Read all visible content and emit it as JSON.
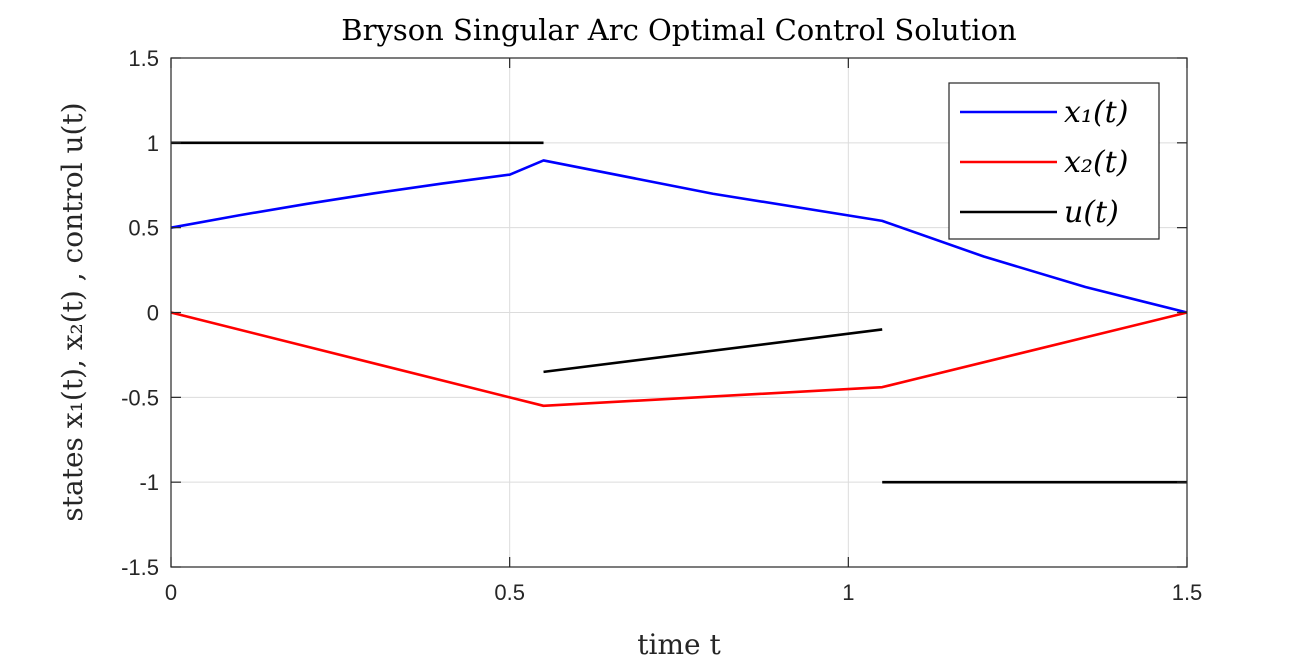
{
  "chart_data": {
    "type": "line",
    "title": "Bryson Singular Arc Optimal Control Solution",
    "xlabel": "time t",
    "ylabel": "states x₁(t), x₂(t) , control u(t)",
    "xlim": [
      0,
      1.5
    ],
    "ylim": [
      -1.5,
      1.5
    ],
    "xticks": [
      0,
      0.5,
      1,
      1.5
    ],
    "xtick_labels": [
      "0",
      "0.5",
      "1",
      "1.5"
    ],
    "yticks": [
      1.5,
      1,
      0.5,
      0,
      -0.5,
      -1,
      -1.5
    ],
    "ytick_labels": [
      "1.5",
      "1",
      "0.5",
      "0",
      "-0.5",
      "-1",
      "-1.5"
    ],
    "grid": true,
    "legend_position": "top-right",
    "series": [
      {
        "name": "x₁(t)",
        "color": "#0000ff",
        "segments": [
          [
            [
              0,
              0.5
            ],
            [
              0.1,
              0.5725
            ],
            [
              0.2,
              0.64
            ],
            [
              0.3,
              0.7025
            ],
            [
              0.4,
              0.76
            ],
            [
              0.5,
              0.8125
            ],
            [
              0.55,
              0.89625
            ],
            [
              0.55,
              0.89625
            ],
            [
              0.8,
              0.7
            ],
            [
              1.05,
              0.54
            ],
            [
              1.2,
              0.33
            ],
            [
              1.35,
              0.15
            ],
            [
              1.5,
              0
            ]
          ]
        ]
      },
      {
        "name": "x₂(t)",
        "color": "#ff0000",
        "segments": [
          [
            [
              0,
              0
            ],
            [
              0.55,
              -0.55
            ],
            [
              1.05,
              -0.44
            ],
            [
              1.5,
              0
            ]
          ]
        ]
      },
      {
        "name": "u(t)",
        "color": "#000000",
        "segments": [
          [
            [
              0,
              1
            ],
            [
              0.55,
              1
            ]
          ],
          [
            [
              0.55,
              -0.35
            ],
            [
              1.05,
              -0.1
            ]
          ],
          [
            [
              1.05,
              -1
            ],
            [
              1.5,
              -1
            ]
          ]
        ]
      }
    ]
  }
}
